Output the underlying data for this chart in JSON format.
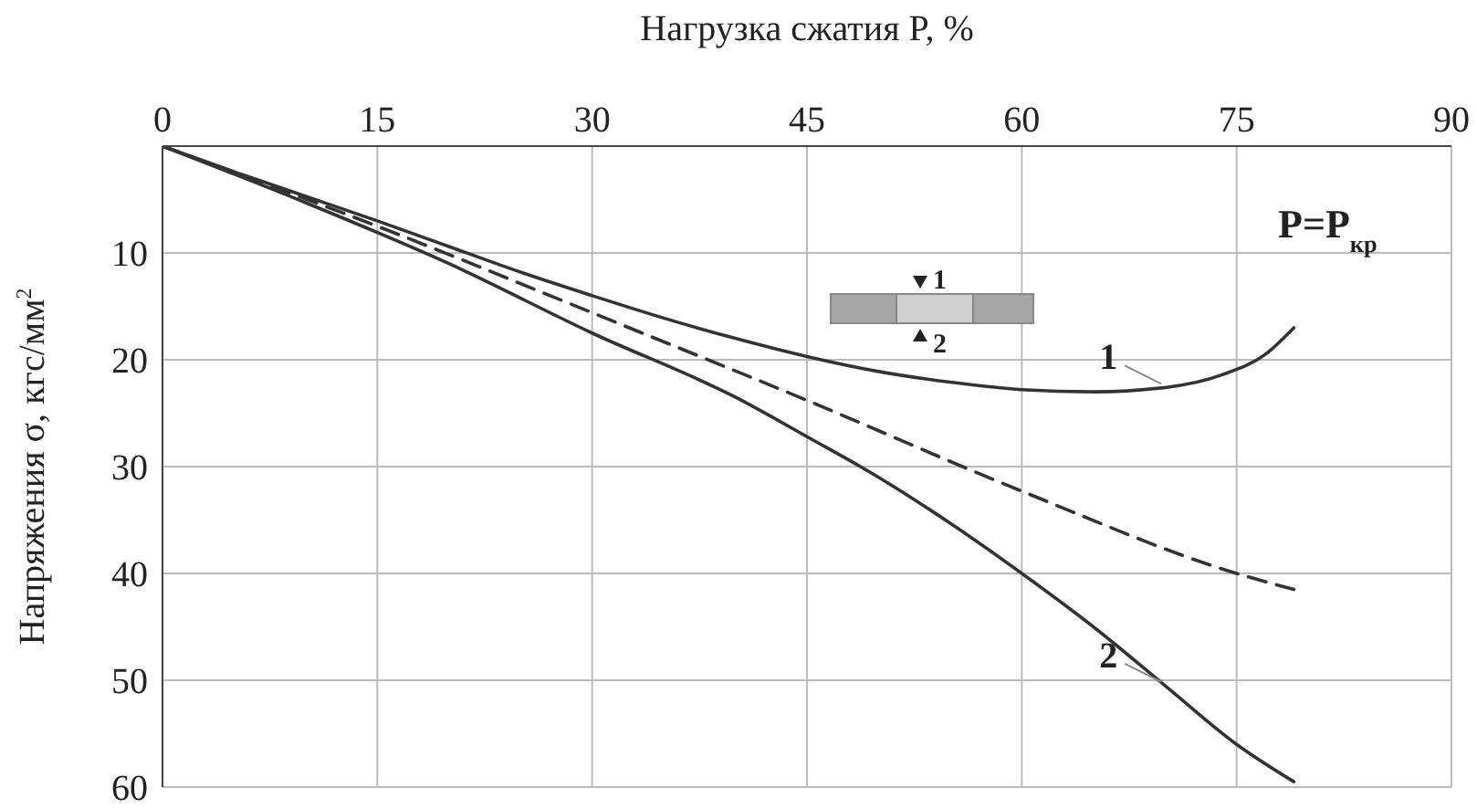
{
  "chart_data": {
    "type": "line",
    "xlabel": "Нагрузка сжатия P, %",
    "ylabel": "Напряжения σ, кгс/мм$^{2}$",
    "xlim": [
      0,
      90
    ],
    "xticks": [
      0,
      15,
      30,
      45,
      60,
      75,
      90
    ],
    "ylim": [
      60,
      0
    ],
    "yticks": [
      10,
      20,
      30,
      40,
      50,
      60
    ],
    "grid": true,
    "marker": "none",
    "series": [
      {
        "color": "#333333",
        "line_style": "solid",
        "x": [
          0,
          5,
          10,
          15,
          20,
          25,
          30,
          35,
          40,
          45,
          50,
          55,
          60,
          65,
          70,
          74,
          77,
          79
        ],
        "values": [
          0,
          2.4,
          4.7,
          7,
          9.4,
          11.8,
          14,
          16.1,
          18,
          19.7,
          21.1,
          22.1,
          22.8,
          23,
          22.6,
          21.4,
          19.5,
          17
        ]
      },
      {
        "color": "#333333",
        "line_style": "dashed",
        "x": [
          0,
          15,
          30,
          45,
          60,
          75,
          79
        ],
        "values": [
          0,
          7.5,
          15.6,
          23.8,
          32.3,
          40,
          41.5
        ]
      },
      {
        "color": "#333333",
        "line_style": "solid",
        "x": [
          0,
          10,
          20,
          30,
          40,
          45,
          50,
          55,
          60,
          65,
          70,
          75,
          79
        ],
        "values": [
          0,
          5.3,
          11,
          17.5,
          23.5,
          27.2,
          31,
          35.3,
          40,
          45,
          50.5,
          56,
          59.5
        ]
      }
    ],
    "annotations": [
      {
        "text": "1",
        "x": 70,
        "y": 22.6
      },
      {
        "text": "2",
        "x": 70,
        "y": 50.5
      },
      "P=P$_{кр}$",
      "1",
      "2"
    ]
  }
}
